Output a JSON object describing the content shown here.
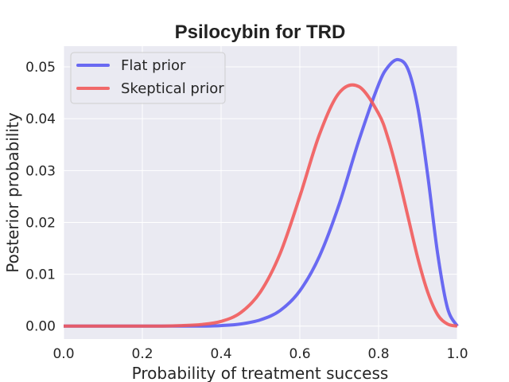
{
  "chart_data": {
    "type": "line",
    "title": "Psilocybin for TRD",
    "xlabel": "Probability of treatment success",
    "ylabel": "Posterior probability",
    "xlim": [
      0.0,
      1.0
    ],
    "ylim": [
      -0.0025,
      0.054
    ],
    "grid": true,
    "legend_position": "top-left",
    "xticks": [
      "0.0",
      "0.2",
      "0.4",
      "0.6",
      "0.8",
      "1.0"
    ],
    "xtick_values": [
      0.0,
      0.2,
      0.4,
      0.6,
      0.8,
      1.0
    ],
    "yticks": [
      "0.00",
      "0.01",
      "0.02",
      "0.03",
      "0.04",
      "0.05"
    ],
    "ytick_values": [
      0.0,
      0.01,
      0.02,
      0.03,
      0.04,
      0.05
    ],
    "x": [
      0.0,
      0.05,
      0.1,
      0.15,
      0.2,
      0.25,
      0.3,
      0.35,
      0.4,
      0.45,
      0.5,
      0.55,
      0.6,
      0.65,
      0.7,
      0.75,
      0.8,
      0.825,
      0.85,
      0.875,
      0.9,
      0.925,
      0.95,
      0.975,
      1.0
    ],
    "series": [
      {
        "name": "Flat prior",
        "color": "#5b5bf2",
        "values": [
          0.0,
          0.0,
          0.0,
          0.0,
          0.0,
          0.0,
          0.0,
          0.0,
          0.0001,
          0.0004,
          0.0012,
          0.003,
          0.0068,
          0.0135,
          0.0235,
          0.0358,
          0.0466,
          0.0501,
          0.0514,
          0.0495,
          0.042,
          0.029,
          0.014,
          0.0035,
          0.0
        ]
      },
      {
        "name": "Skeptical prior",
        "color": "#f25b5b",
        "values": [
          0.0,
          0.0,
          0.0,
          0.0,
          0.0,
          0.0,
          0.0001,
          0.0003,
          0.0009,
          0.0026,
          0.0066,
          0.014,
          0.025,
          0.037,
          0.045,
          0.0462,
          0.041,
          0.036,
          0.029,
          0.021,
          0.013,
          0.0065,
          0.0022,
          0.0004,
          0.0
        ]
      }
    ]
  }
}
